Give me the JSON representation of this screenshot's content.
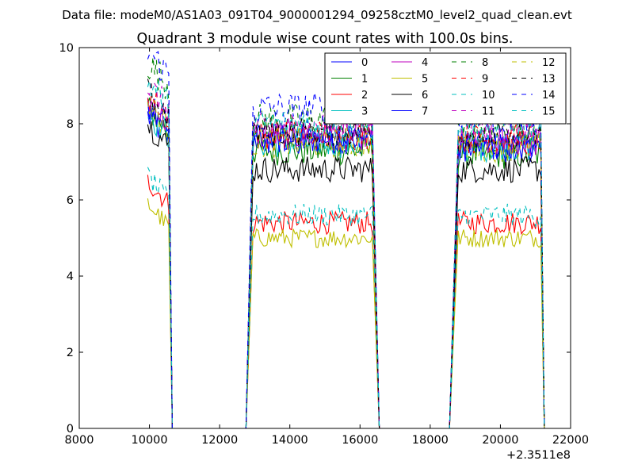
{
  "figure": {
    "suptitle": "Data file: modeM0/AS1A03_091T04_9000001294_09258cztM0_level2_quad_clean.evt"
  },
  "chart_data": {
    "type": "line",
    "title": "Quadrant 3 module wise count rates with 100.0s bins.",
    "xlabel": "",
    "ylabel": "",
    "xlim": [
      8000,
      22000
    ],
    "ylim": [
      0,
      10
    ],
    "x_offset_label": "+2.3511e8",
    "x_ticks": [
      8000,
      10000,
      12000,
      14000,
      16000,
      18000,
      20000,
      22000
    ],
    "y_ticks": [
      0,
      2,
      4,
      6,
      8,
      10
    ],
    "grid": false,
    "legend": {
      "placement": "top-right",
      "columns": 4
    },
    "segments": [
      {
        "x_start": 9950,
        "x_end": 10550,
        "drop_to": 10650,
        "rise_from": null
      },
      {
        "x_start": 12950,
        "x_end": 16350,
        "drop_to": 16550,
        "rise_from": 12750
      },
      {
        "x_start": 18800,
        "x_end": 21150,
        "drop_to": 21250,
        "rise_from": 18550
      }
    ],
    "series": [
      {
        "name": "0",
        "color": "#0000ff",
        "dashed": false,
        "levels": [
          7.6,
          7.6,
          7.4
        ],
        "noise": 0.4
      },
      {
        "name": "1",
        "color": "#008000",
        "dashed": false,
        "levels": [
          7.8,
          7.3,
          7.2
        ],
        "noise": 0.4
      },
      {
        "name": "2",
        "color": "#ff0000",
        "dashed": false,
        "levels": [
          5.9,
          5.4,
          5.4
        ],
        "noise": 0.3
      },
      {
        "name": "3",
        "color": "#00bfbf",
        "dashed": false,
        "levels": [
          7.7,
          7.5,
          7.4
        ],
        "noise": 0.4
      },
      {
        "name": "4",
        "color": "#bf00bf",
        "dashed": false,
        "levels": [
          8.0,
          7.7,
          7.5
        ],
        "noise": 0.4
      },
      {
        "name": "5",
        "color": "#bfbf00",
        "dashed": false,
        "levels": [
          5.3,
          5.0,
          5.0
        ],
        "noise": 0.25
      },
      {
        "name": "6",
        "color": "#000000",
        "dashed": false,
        "levels": [
          7.4,
          6.8,
          6.8
        ],
        "noise": 0.35
      },
      {
        "name": "7",
        "color": "#0000ff",
        "dashed": false,
        "levels": [
          7.9,
          7.6,
          7.4
        ],
        "noise": 0.4
      },
      {
        "name": "8",
        "color": "#008000",
        "dashed": true,
        "levels": [
          9.0,
          8.1,
          7.9
        ],
        "noise": 0.45
      },
      {
        "name": "9",
        "color": "#ff0000",
        "dashed": true,
        "levels": [
          8.2,
          7.7,
          7.6
        ],
        "noise": 0.4
      },
      {
        "name": "10",
        "color": "#00bfbf",
        "dashed": true,
        "levels": [
          6.0,
          5.6,
          5.6
        ],
        "noise": 0.3
      },
      {
        "name": "11",
        "color": "#bf00bf",
        "dashed": true,
        "levels": [
          8.4,
          7.9,
          7.8
        ],
        "noise": 0.4
      },
      {
        "name": "12",
        "color": "#bfbf00",
        "dashed": true,
        "levels": [
          7.9,
          7.5,
          7.4
        ],
        "noise": 0.4
      },
      {
        "name": "13",
        "color": "#000000",
        "dashed": true,
        "levels": [
          8.2,
          7.8,
          7.7
        ],
        "noise": 0.4
      },
      {
        "name": "14",
        "color": "#0000ff",
        "dashed": true,
        "levels": [
          9.3,
          8.4,
          8.2
        ],
        "noise": 0.45
      },
      {
        "name": "15",
        "color": "#00bfbf",
        "dashed": true,
        "levels": [
          8.5,
          8.0,
          7.9
        ],
        "noise": 0.4
      }
    ]
  }
}
